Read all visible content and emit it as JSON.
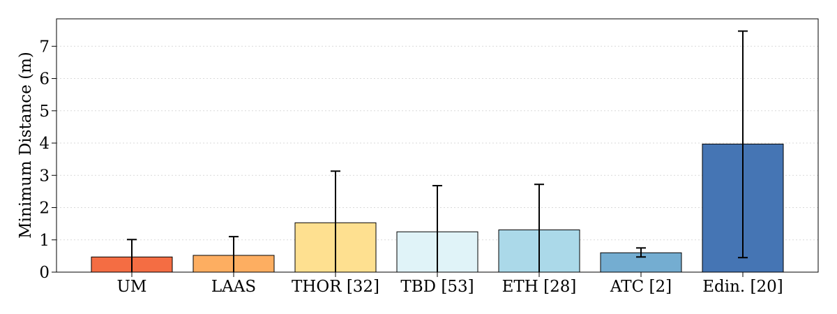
{
  "chart_data": {
    "type": "bar",
    "title": "",
    "xlabel": "",
    "ylabel": "Minimum Distance (m)",
    "ylim": [
      0,
      7.85
    ],
    "yticks": [
      0,
      1,
      2,
      3,
      4,
      5,
      6,
      7
    ],
    "grid": "horizontal-dotted",
    "categories": [
      "UM",
      "LAAS",
      "THOR [32]",
      "TBD [53]",
      "ETH [28]",
      "ATC [2]",
      "Edin. [20]"
    ],
    "values": [
      0.47,
      0.52,
      1.53,
      1.25,
      1.31,
      0.6,
      3.97
    ],
    "error_low": [
      0.0,
      0.0,
      0.0,
      0.0,
      0.0,
      0.47,
      0.45
    ],
    "error_high": [
      1.01,
      1.1,
      3.13,
      2.68,
      2.72,
      0.75,
      7.47
    ],
    "colors": [
      "#f46d43",
      "#fdae61",
      "#fee090",
      "#e0f3f8",
      "#abd9e9",
      "#74add1",
      "#4575b4"
    ]
  }
}
